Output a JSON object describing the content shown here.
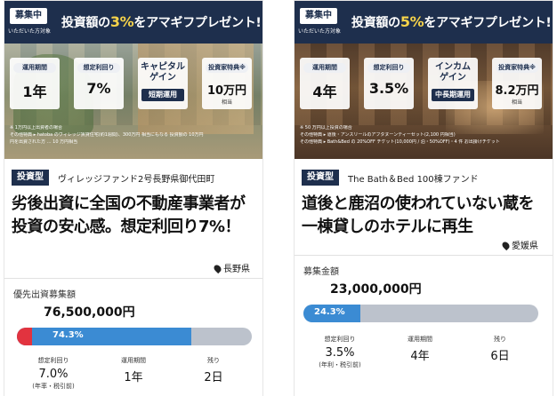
{
  "cards": [
    {
      "banner": {
        "badge": "募集中",
        "badge_sub": "いただいた方対象",
        "title_pre": "投資額の",
        "title_highlight": "3%",
        "title_post": "をアマギフプレゼント!"
      },
      "stats": [
        {
          "label": "運用期間",
          "value": "1年"
        },
        {
          "label": "想定利回り",
          "value": "7%"
        },
        {
          "title": "キャピタル\nゲイン",
          "sub": "短期運用"
        },
        {
          "label": "投資家特典※",
          "value": "10万円",
          "note": "相当"
        }
      ],
      "fine_print": [
        "※ 1万円以上出資者の場合",
        "その他特典 ▸ hatoba のヴィレッジ賃貸住宅(約1週間)、300万円 相当にもなる 投資額の 10万円",
        "円を出資された方 … 10 万円相当"
      ],
      "type_badge": "投資型",
      "fund_name": "ヴィレッジファンド2号長野県御代田町",
      "headline": "劣後出資に全国の不動産事業者が投資の安心感。想定利回り7%！",
      "prefecture": "長野県",
      "amount_label": "優先出資募集額",
      "amount_value": "76,500,000円",
      "progress": {
        "percent_label": "74.3%",
        "percent": 74.3,
        "subordinate_percent": 6.5
      },
      "metrics": [
        {
          "label": "想定利回り",
          "value": "7.0%",
          "note": "(年率・税引前)"
        },
        {
          "label": "運用期間",
          "value": "1年"
        },
        {
          "label": "残り",
          "value": "2日"
        }
      ]
    },
    {
      "banner": {
        "badge": "募集中",
        "badge_sub": "いただいた方対象",
        "title_pre": "投資額の",
        "title_highlight": "5%",
        "title_post": "をアマギフプレゼント!"
      },
      "stats": [
        {
          "label": "運用期間",
          "value": "4年"
        },
        {
          "label": "想定利回り",
          "value": "3.5%"
        },
        {
          "title": "インカム\nゲイン",
          "sub": "中長期運用"
        },
        {
          "label": "投資家特典※",
          "value": "8.2万円",
          "note": "相当"
        }
      ],
      "fine_print": [
        "※ 50 万円以上投資の場合",
        "その他特典 ▸ 道後・アンスリールのアフタヌーンティーセット(2,100 円相当)",
        "その他特典 ▸ Bath&Bed の 20%OFF チケット(10,000円 / 泊・50%OFF)・4 件 お出掛けチケット"
      ],
      "type_badge": "投資型",
      "fund_name": "The Bath＆Bed 100棟ファンド",
      "headline": "道後と鹿沼の使われていない蔵を一棟貸しのホテルに再生",
      "prefecture": "愛媛県",
      "amount_label": "募集金額",
      "amount_value": "23,000,000円",
      "progress": {
        "percent_label": "24.3%",
        "percent": 24.3
      },
      "metrics": [
        {
          "label": "想定利回り",
          "value": "3.5%",
          "note": "(年利・税引前)"
        },
        {
          "label": "運用期間",
          "value": "4年"
        },
        {
          "label": "残り",
          "value": "6日"
        }
      ]
    }
  ],
  "colors": {
    "navy": "#1e2f4d",
    "progress_blue": "#3b8bd3",
    "progress_red": "#e2333f",
    "track": "#bcc2cc",
    "highlight": "#f6d34a"
  },
  "icons": {
    "location": "location-pin-icon"
  }
}
